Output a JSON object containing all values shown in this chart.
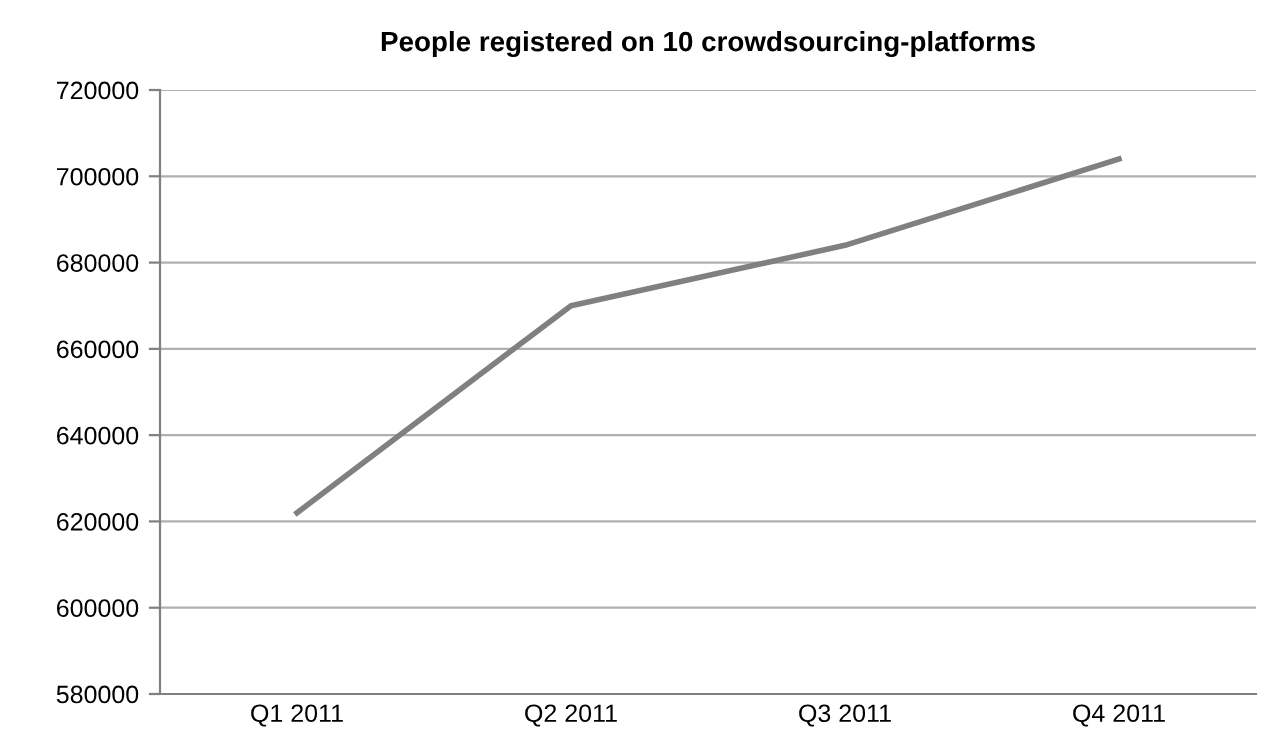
{
  "chart_data": {
    "type": "line",
    "title": "People registered on 10 crowdsourcing-platforms",
    "categories": [
      "Q1 2011",
      "Q2 2011",
      "Q3 2011",
      "Q4 2011"
    ],
    "series": [
      {
        "color": "#808080",
        "values": [
          622000,
          670000,
          684000,
          704000
        ]
      }
    ],
    "ylim": [
      580000,
      720000
    ],
    "yticks": [
      580000,
      600000,
      620000,
      640000,
      660000,
      680000,
      700000,
      720000
    ],
    "grid": "y",
    "legend": false,
    "marker": "none",
    "line_style": "solid"
  }
}
